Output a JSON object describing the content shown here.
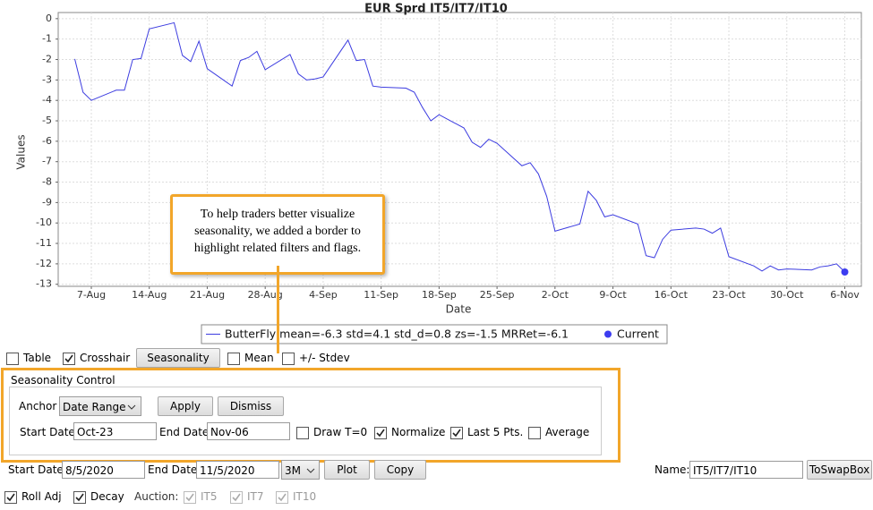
{
  "chart_data": {
    "type": "line",
    "title": "EUR Sprd IT5/IT7/IT10",
    "x_label": "Date",
    "y_label": "Values",
    "x": [
      "5-Aug",
      "6-Aug",
      "7-Aug",
      "10-Aug",
      "11-Aug",
      "12-Aug",
      "13-Aug",
      "14-Aug",
      "17-Aug",
      "18-Aug",
      "19-Aug",
      "20-Aug",
      "21-Aug",
      "24-Aug",
      "25-Aug",
      "26-Aug",
      "27-Aug",
      "28-Aug",
      "31-Aug",
      "1-Sep",
      "2-Sep",
      "3-Sep",
      "4-Sep",
      "7-Sep",
      "8-Sep",
      "9-Sep",
      "10-Sep",
      "11-Sep",
      "14-Sep",
      "15-Sep",
      "16-Sep",
      "17-Sep",
      "18-Sep",
      "21-Sep",
      "22-Sep",
      "23-Sep",
      "24-Sep",
      "25-Sep",
      "28-Sep",
      "29-Sep",
      "30-Sep",
      "1-Oct",
      "2-Oct",
      "5-Oct",
      "6-Oct",
      "7-Oct",
      "8-Oct",
      "9-Oct",
      "12-Oct",
      "13-Oct",
      "14-Oct",
      "15-Oct",
      "16-Oct",
      "19-Oct",
      "20-Oct",
      "21-Oct",
      "22-Oct",
      "23-Oct",
      "26-Oct",
      "27-Oct",
      "28-Oct",
      "29-Oct",
      "30-Oct",
      "2-Nov",
      "3-Nov",
      "4-Nov",
      "5-Nov",
      "6-Nov"
    ],
    "series": [
      {
        "name": "ButterFly mean=-6.3  std=4.1  std_d=0.8  zs=-1.5  MRRet=-6.1",
        "color": "#3c3ce0",
        "values": [
          -1.97,
          -3.6,
          -4.0,
          -3.5,
          -3.5,
          -2.0,
          -1.95,
          -0.5,
          -0.2,
          -1.8,
          -2.1,
          -1.1,
          -2.45,
          -3.3,
          -2.05,
          -1.9,
          -1.6,
          -2.5,
          -1.75,
          -2.7,
          -3.0,
          -2.95,
          -2.85,
          -1.05,
          -2.05,
          -2.0,
          -3.3,
          -3.35,
          -3.4,
          -3.6,
          -4.35,
          -5.0,
          -4.7,
          -5.35,
          -6.05,
          -6.3,
          -5.9,
          -6.1,
          -7.2,
          -7.05,
          -7.6,
          -8.7,
          -10.4,
          -10.05,
          -8.45,
          -8.9,
          -9.7,
          -9.6,
          -10.05,
          -11.6,
          -11.7,
          -10.8,
          -10.35,
          -10.25,
          -10.3,
          -10.5,
          -10.25,
          -11.65,
          -12.1,
          -12.35,
          -12.1,
          -12.3,
          -12.25,
          -12.3,
          -12.15,
          -12.1,
          -12.0,
          -12.4
        ]
      }
    ],
    "current": {
      "name": "Current",
      "x": "6-Nov",
      "value": -12.4,
      "color": "#3c3cf0"
    },
    "xlim": [
      "3-Aug",
      "8-Nov"
    ],
    "xticks": [
      "7-Aug",
      "14-Aug",
      "21-Aug",
      "28-Aug",
      "4-Sep",
      "11-Sep",
      "18-Sep",
      "25-Sep",
      "2-Oct",
      "9-Oct",
      "16-Oct",
      "23-Oct",
      "30-Oct",
      "6-Nov"
    ],
    "ylim": [
      -13.1,
      0.3
    ],
    "yticks": [
      0,
      -1,
      -2,
      -3,
      -4,
      -5,
      -6,
      -7,
      -8,
      -9,
      -10,
      -11,
      -12,
      -13
    ],
    "grid": true
  },
  "annotation": {
    "lines": [
      "To help traders better visualize",
      "seasonality, we added a border to",
      "highlight related filters and flags."
    ]
  },
  "toolbar": {
    "table": {
      "label": "Table",
      "checked": false
    },
    "crosshair": {
      "label": "Crosshair",
      "checked": true
    },
    "seasonality": "Seasonality",
    "mean": {
      "label": "Mean",
      "checked": false
    },
    "stdev": {
      "label": "+/- Stdev",
      "checked": false
    }
  },
  "seasonality_control": {
    "title": "Seasonality Control",
    "anchor_label": "Anchor",
    "anchor_value": "Date Range",
    "apply": "Apply",
    "dismiss": "Dismiss",
    "start_label": "Start Date",
    "start_value": "Oct-23",
    "end_label": "End Date",
    "end_value": "Nov-06",
    "draw_t0": {
      "label": "Draw T=0",
      "checked": false
    },
    "normalize": {
      "label": "Normalize",
      "checked": true
    },
    "last5": {
      "label": "Last 5 Pts.",
      "checked": true
    },
    "average": {
      "label": "Average",
      "checked": false
    }
  },
  "bottom": {
    "start_label": "Start Date",
    "start_value": "8/5/2020",
    "end_label": "End Date",
    "end_value": "11/5/2020",
    "period": "3M",
    "plot": "Plot",
    "copy": "Copy",
    "name_label": "Name:",
    "name_value": "IT5/IT7/IT10",
    "to_swap_box": "ToSwapBox",
    "roll_adj": {
      "label": "Roll Adj",
      "checked": true
    },
    "decay": {
      "label": "Decay",
      "checked": true
    },
    "auction_label": "Auction:",
    "it5": {
      "label": "IT5",
      "checked": true,
      "disabled": true
    },
    "it7": {
      "label": "IT7",
      "checked": true,
      "disabled": true
    },
    "it10": {
      "label": "IT10",
      "checked": true,
      "disabled": true
    }
  }
}
